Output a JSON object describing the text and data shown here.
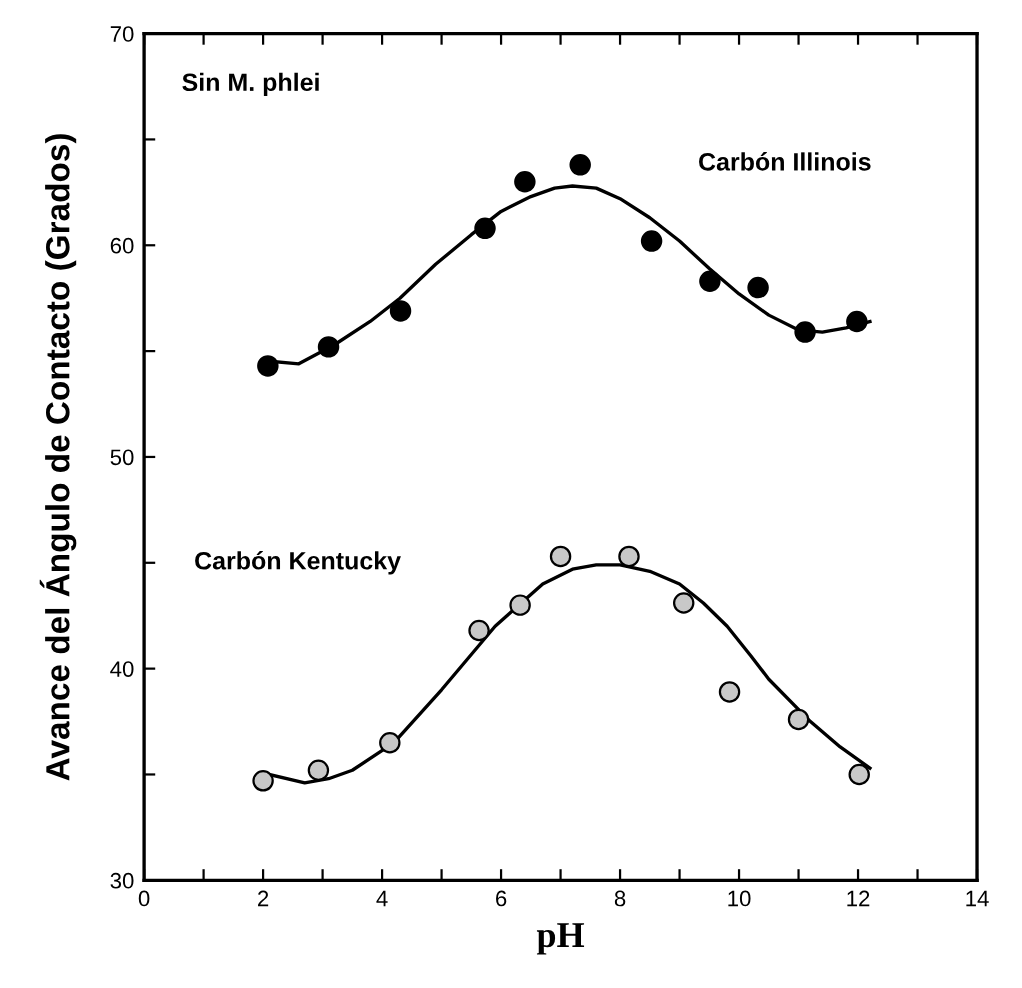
{
  "chart_data": {
    "type": "scatter",
    "xlabel": "pH",
    "ylabel": "Avance del Ángulo de Contacto (Grados)",
    "xlim": [
      0,
      14
    ],
    "ylim": [
      30,
      70
    ],
    "xticks": [
      0,
      {
        "value": 1,
        "label": null
      },
      2,
      {
        "value": 3,
        "label": null
      },
      4,
      {
        "value": 5,
        "label": null
      },
      6,
      {
        "value": 7,
        "label": null
      },
      8,
      {
        "value": 9,
        "label": null
      },
      10,
      {
        "value": 11,
        "label": null
      },
      12,
      {
        "value": 13,
        "label": null
      },
      14
    ],
    "yticks": [
      30,
      {
        "value": 35,
        "label": null
      },
      40,
      {
        "value": 45,
        "label": null
      },
      50,
      {
        "value": 55,
        "label": null
      },
      60,
      {
        "value": 65,
        "label": null
      },
      70
    ],
    "grid": false,
    "annotations": [
      "Sin M. phlei",
      "Carbón Illinois",
      "Carbón Kentucky"
    ],
    "series": [
      {
        "marker": "circle",
        "color": "#000000",
        "x": [
          2.08,
          3.1,
          4.31,
          5.73,
          6.4,
          7.33,
          8.53,
          9.51,
          10.32,
          11.11,
          11.98
        ],
        "values": [
          54.3,
          55.2,
          56.9,
          60.8,
          63.0,
          63.8,
          60.2,
          58.3,
          58.0,
          55.9,
          56.4
        ]
      },
      {
        "marker": "circle",
        "color": "#c8c8c8",
        "x": [
          2.0,
          2.93,
          4.13,
          5.63,
          6.32,
          7.0,
          8.15,
          9.07,
          9.84,
          11.0,
          12.02
        ],
        "values": [
          34.7,
          35.2,
          36.5,
          41.8,
          43.0,
          45.3,
          45.3,
          43.1,
          38.9,
          37.6,
          35.0
        ]
      },
      {
        "type": "line",
        "marker": "none",
        "line_style": "solid",
        "color": "#000000",
        "x": [
          2.2,
          2.6,
          3.2,
          3.8,
          4.3,
          4.9,
          5.5,
          6.0,
          6.5,
          6.9,
          7.2,
          7.6,
          8.0,
          8.5,
          9.0,
          9.5,
          10.0,
          10.5,
          11.0,
          11.4,
          11.8,
          12.2
        ],
        "values": [
          54.5,
          54.4,
          55.3,
          56.4,
          57.5,
          59.1,
          60.5,
          61.6,
          62.3,
          62.7,
          62.8,
          62.7,
          62.2,
          61.3,
          60.2,
          58.9,
          57.7,
          56.7,
          56.0,
          55.9,
          56.1,
          56.4
        ]
      },
      {
        "type": "line",
        "marker": "none",
        "line_style": "solid",
        "color": "#000000",
        "x": [
          2.1,
          2.7,
          3.1,
          3.5,
          4.2,
          5.0,
          5.9,
          6.7,
          7.2,
          7.6,
          8.0,
          8.5,
          9.0,
          9.4,
          9.8,
          10.2,
          10.5,
          11.2,
          11.7,
          12.2
        ],
        "values": [
          35.0,
          34.6,
          34.8,
          35.2,
          36.5,
          39.0,
          42.0,
          44.0,
          44.7,
          44.9,
          44.9,
          44.6,
          44.0,
          43.1,
          42.0,
          40.6,
          39.5,
          37.5,
          36.3,
          35.3
        ]
      }
    ]
  }
}
